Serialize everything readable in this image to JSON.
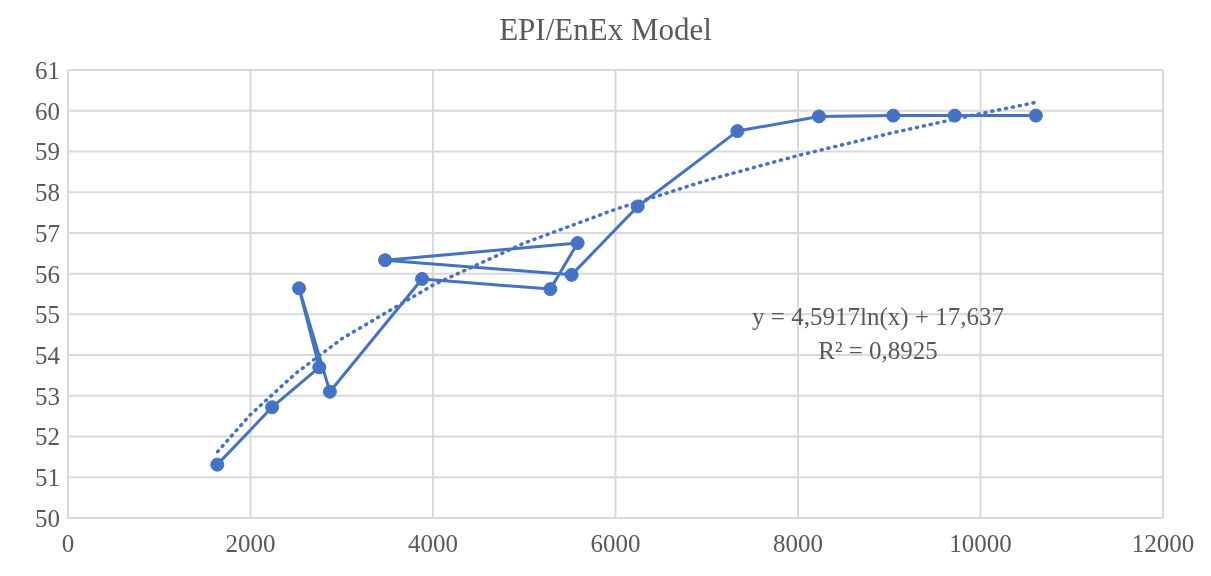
{
  "chart_data": {
    "type": "line",
    "title": "EPI/EnEx Model",
    "series": [
      {
        "color": "#4472c4",
        "marker": "circle",
        "line_style": "solid",
        "x": [
          1636,
          2237,
          2754,
          2532,
          2870,
          3880,
          5286,
          5585,
          3475,
          5519,
          6243,
          7336,
          8230,
          9044,
          9718,
          10607
        ],
        "values": [
          51.31,
          52.72,
          53.7,
          55.64,
          53.1,
          55.87,
          55.62,
          56.75,
          56.33,
          55.97,
          57.65,
          59.5,
          59.86,
          59.88,
          59.88,
          59.88
        ]
      },
      {
        "color": "#4472c4",
        "marker": "none",
        "line_style": "dotted",
        "x": [
          1640,
          2000,
          2500,
          3000,
          4000,
          5000,
          6000,
          7000,
          8000,
          9000,
          10000,
          10600
        ],
        "values": [
          51.63,
          52.54,
          53.56,
          54.4,
          55.72,
          56.75,
          57.58,
          58.29,
          58.9,
          59.44,
          59.93,
          60.2
        ]
      }
    ],
    "annotations": [
      "y = 4,5917ln(x) + 17,637",
      "R² = 0,8925"
    ],
    "xlim": [
      0,
      12000
    ],
    "xticks": [
      0,
      2000,
      4000,
      6000,
      8000,
      10000,
      12000
    ],
    "ylim": [
      50,
      61
    ],
    "yticks": [
      50,
      51,
      52,
      53,
      54,
      55,
      56,
      57,
      58,
      59,
      60,
      61
    ],
    "grid": true
  }
}
